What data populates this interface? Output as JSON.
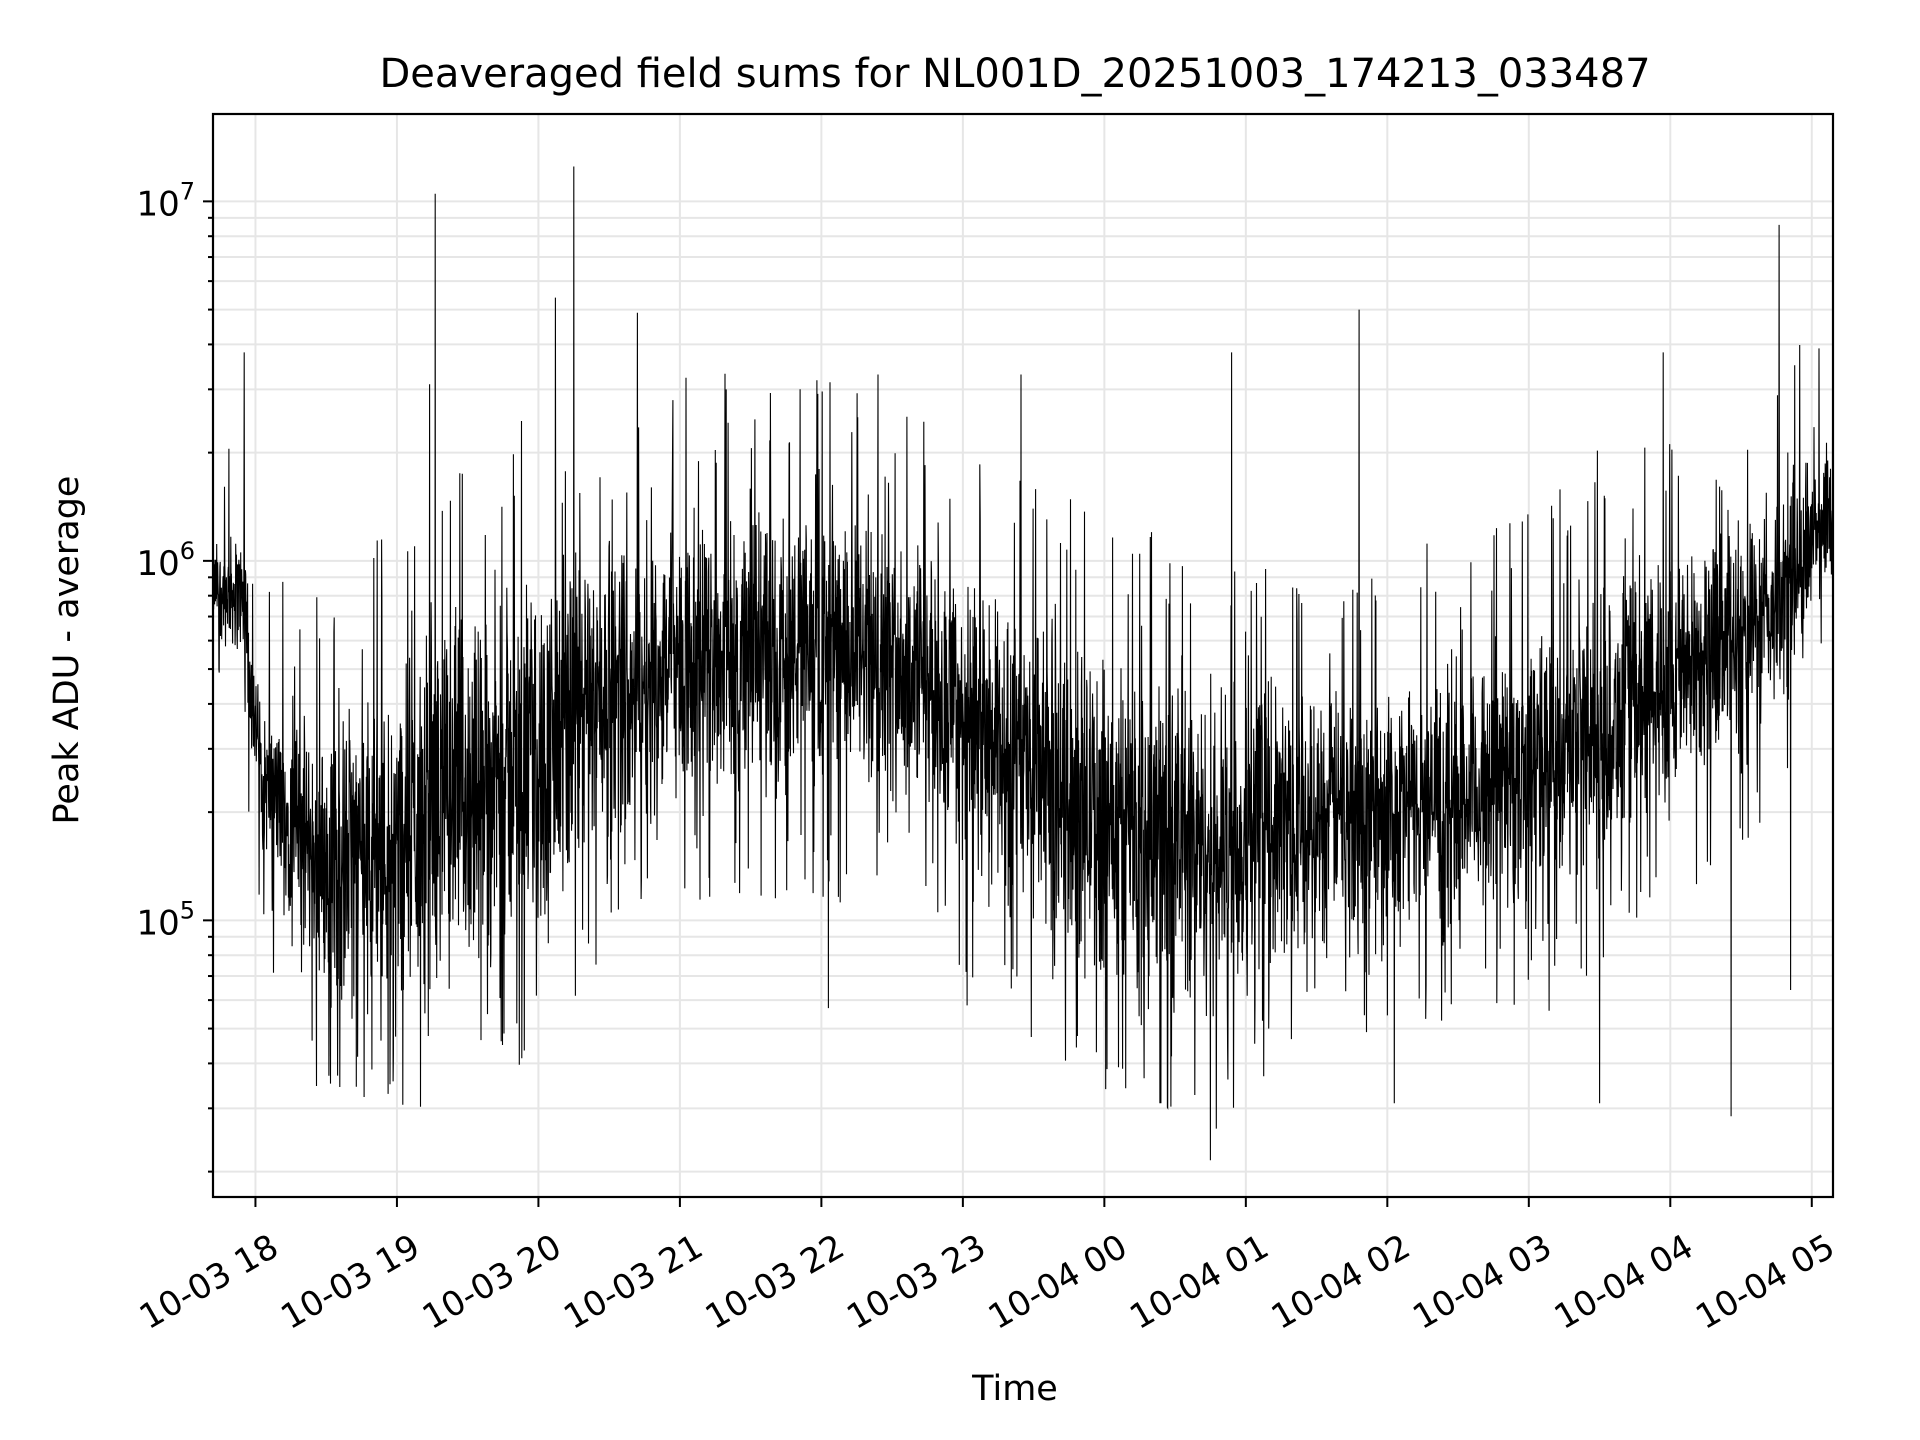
{
  "chart_data": {
    "type": "line",
    "title": "Deaveraged field sums for NL001D_20251003_174213_033487",
    "xlabel": "Time",
    "ylabel": "Peak ADU - average",
    "yscale": "log",
    "ylim": [
      17000,
      17500000
    ],
    "xlim_hours": [
      -0.3,
      11.15
    ],
    "grid": true,
    "color": "#000000",
    "x_ticks": [
      {
        "h": 0,
        "label": "10-03 18"
      },
      {
        "h": 1,
        "label": "10-03 19"
      },
      {
        "h": 2,
        "label": "10-03 20"
      },
      {
        "h": 3,
        "label": "10-03 21"
      },
      {
        "h": 4,
        "label": "10-03 22"
      },
      {
        "h": 5,
        "label": "10-03 23"
      },
      {
        "h": 6,
        "label": "10-04 00"
      },
      {
        "h": 7,
        "label": "10-04 01"
      },
      {
        "h": 8,
        "label": "10-04 02"
      },
      {
        "h": 9,
        "label": "10-04 03"
      },
      {
        "h": 10,
        "label": "10-04 04"
      },
      {
        "h": 11,
        "label": "10-04 05"
      }
    ],
    "y_ticks": [
      {
        "value": 100000,
        "base": "10",
        "exp": "5"
      },
      {
        "value": 1000000,
        "base": "10",
        "exp": "6"
      },
      {
        "value": 10000000,
        "base": "10",
        "exp": "7"
      }
    ],
    "trend": [
      {
        "h": -0.3,
        "low": 600000,
        "high": 1200000
      },
      {
        "h": -0.1,
        "low": 500000,
        "high": 1300000
      },
      {
        "h": 0.05,
        "low": 150000,
        "high": 400000
      },
      {
        "h": 0.5,
        "low": 50000,
        "high": 400000
      },
      {
        "h": 1.0,
        "low": 50000,
        "high": 600000
      },
      {
        "h": 1.5,
        "low": 60000,
        "high": 900000
      },
      {
        "h": 2.0,
        "low": 70000,
        "high": 1100000
      },
      {
        "h": 2.5,
        "low": 150000,
        "high": 1300000
      },
      {
        "h": 3.0,
        "low": 200000,
        "high": 1500000
      },
      {
        "h": 4.0,
        "low": 200000,
        "high": 1500000
      },
      {
        "h": 4.7,
        "low": 180000,
        "high": 1300000
      },
      {
        "h": 5.2,
        "low": 100000,
        "high": 900000
      },
      {
        "h": 6.0,
        "low": 60000,
        "high": 600000
      },
      {
        "h": 6.8,
        "low": 45000,
        "high": 550000
      },
      {
        "h": 7.5,
        "low": 80000,
        "high": 500000
      },
      {
        "h": 8.5,
        "low": 90000,
        "high": 500000
      },
      {
        "h": 9.2,
        "low": 100000,
        "high": 800000
      },
      {
        "h": 10.0,
        "low": 200000,
        "high": 1200000
      },
      {
        "h": 10.7,
        "low": 300000,
        "high": 1600000
      },
      {
        "h": 11.15,
        "low": 900000,
        "high": 2500000
      }
    ],
    "spikes": [
      {
        "h": -0.08,
        "value": 3800000
      },
      {
        "h": 1.27,
        "value": 10500000
      },
      {
        "h": 1.23,
        "value": 3100000
      },
      {
        "h": 2.12,
        "value": 5400000
      },
      {
        "h": 2.25,
        "value": 12500000
      },
      {
        "h": 1.88,
        "value": 2450000
      },
      {
        "h": 2.7,
        "value": 4900000
      },
      {
        "h": 2.95,
        "value": 2800000
      },
      {
        "h": 3.85,
        "value": 3000000
      },
      {
        "h": 4.4,
        "value": 3300000
      },
      {
        "h": 5.41,
        "value": 3300000
      },
      {
        "h": 6.9,
        "value": 3800000
      },
      {
        "h": 7.8,
        "value": 5000000
      },
      {
        "h": 9.95,
        "value": 3800000
      },
      {
        "h": 10.77,
        "value": 8600000
      },
      {
        "h": 10.88,
        "value": 3500000
      },
      {
        "h": 11.05,
        "value": 3900000
      },
      {
        "h": 0.58,
        "value": 37000
      },
      {
        "h": 0.95,
        "value": 35000
      },
      {
        "h": 6.75,
        "value": 21500
      },
      {
        "h": 6.4,
        "value": 31000
      },
      {
        "h": 8.05,
        "value": 31000
      },
      {
        "h": 9.5,
        "value": 31000
      },
      {
        "h": 10.43,
        "value": 28500
      },
      {
        "h": 10.85,
        "value": 64000
      },
      {
        "h": 4.05,
        "value": 57000
      },
      {
        "h": 5.03,
        "value": 58000
      }
    ]
  }
}
